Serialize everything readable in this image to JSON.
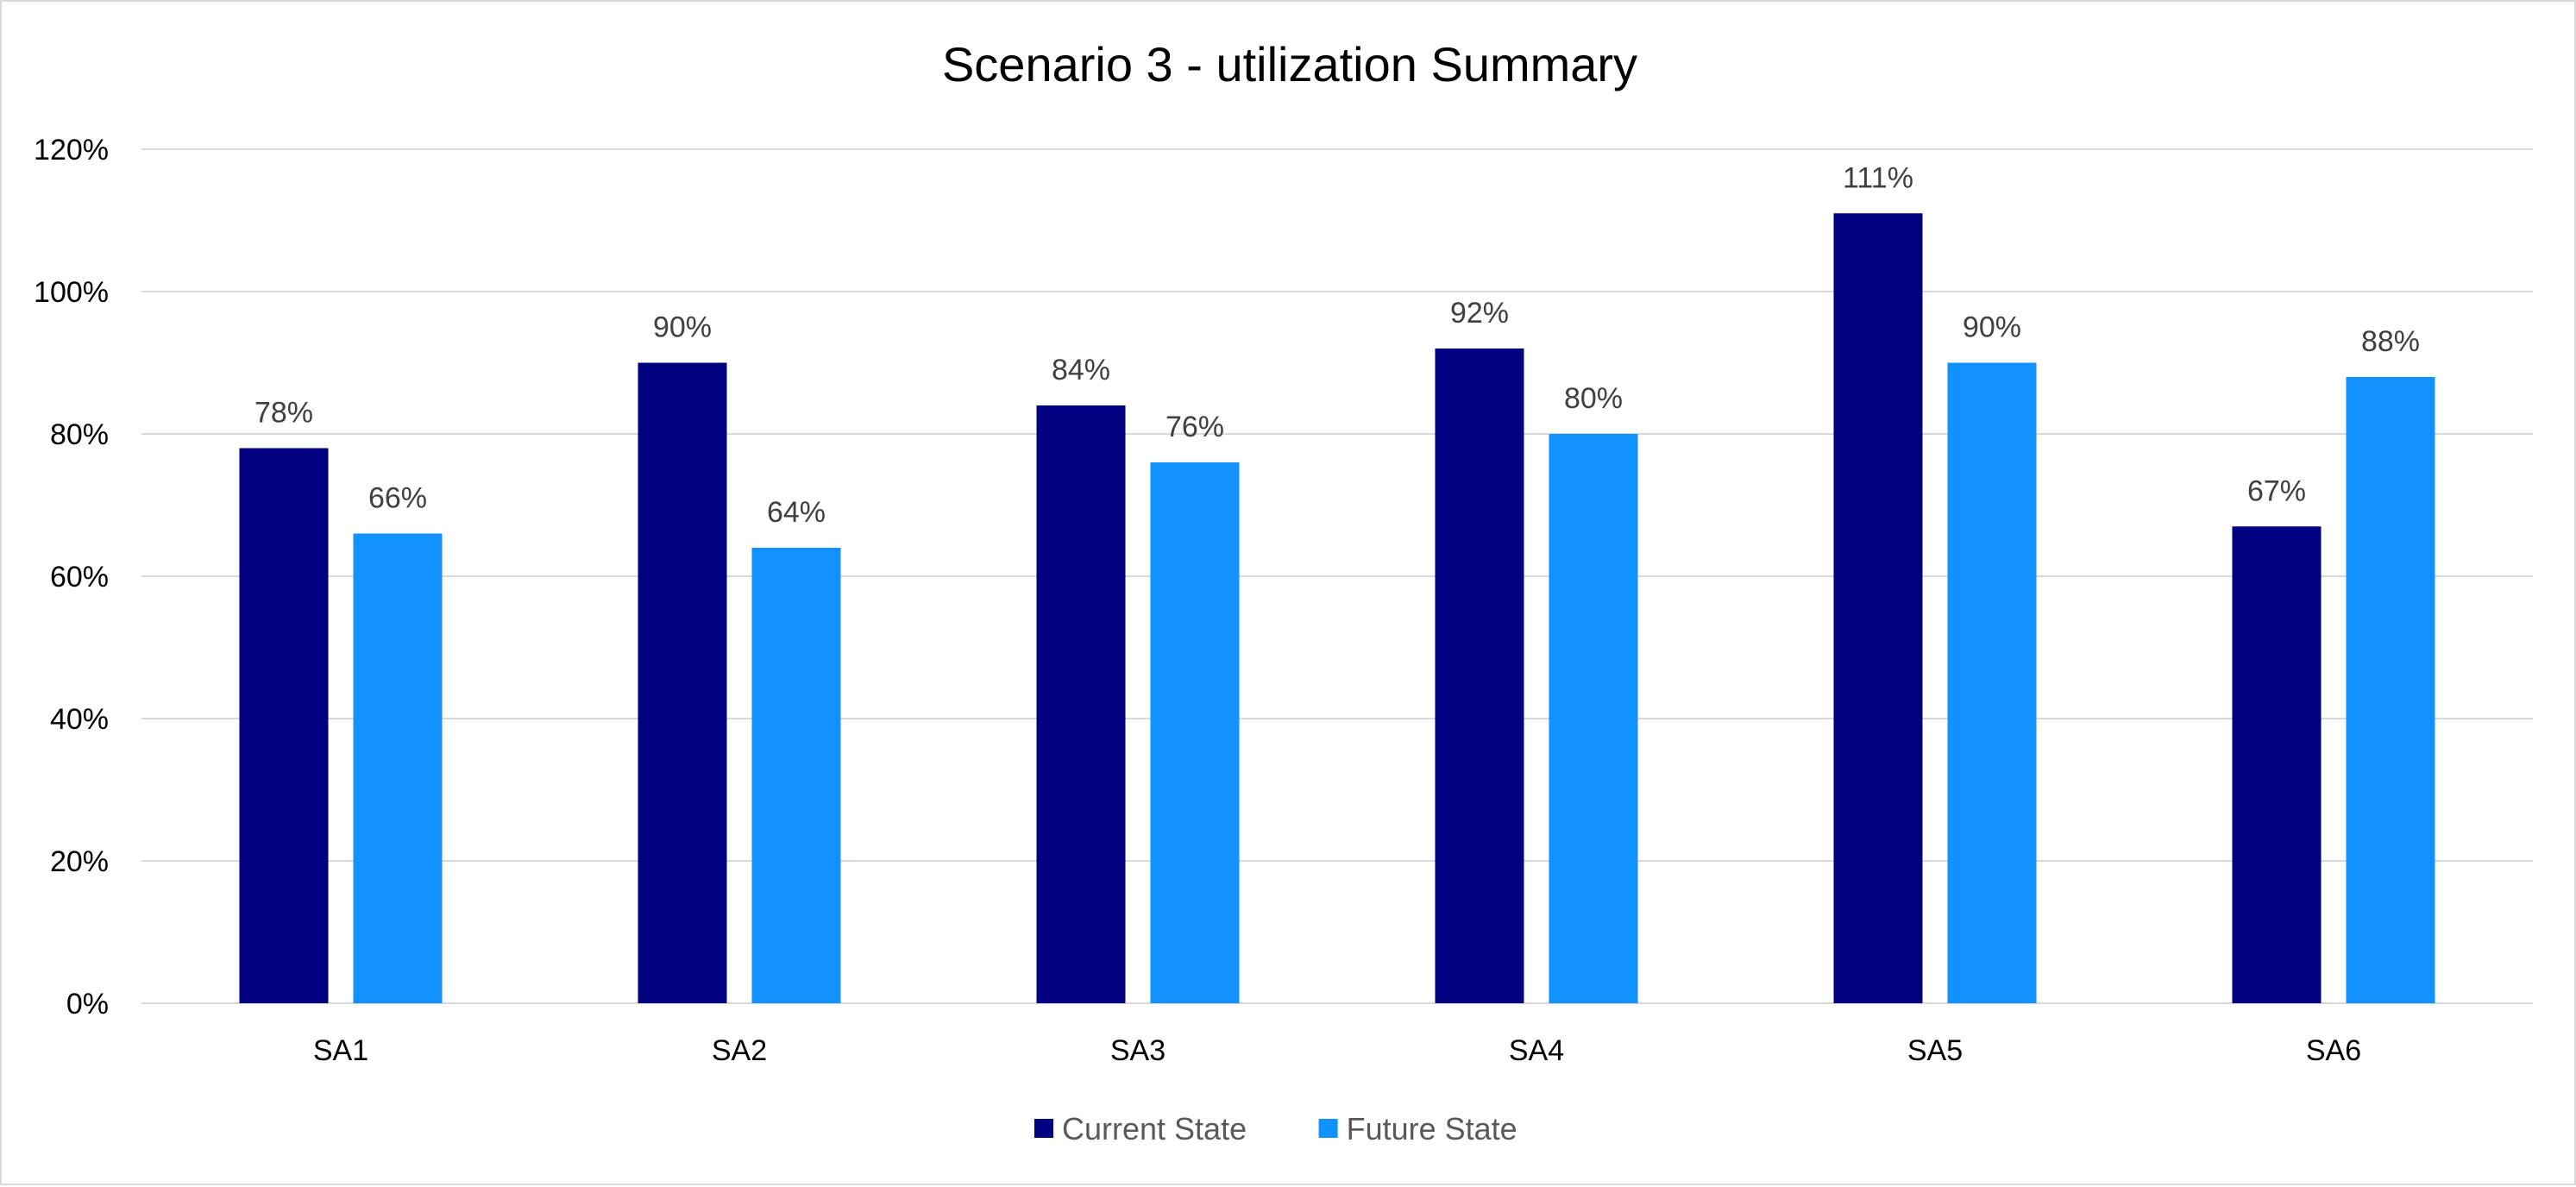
{
  "chart_data": {
    "type": "bar",
    "title": "Scenario 3 - utilization Summary",
    "xlabel": "",
    "ylabel": "",
    "categories": [
      "SA1",
      "SA2",
      "SA3",
      "SA4",
      "SA5",
      "SA6"
    ],
    "series": [
      {
        "name": "Current State",
        "color": "#000080",
        "values": [
          78,
          90,
          84,
          92,
          111,
          67
        ],
        "labels": [
          "78%",
          "90%",
          "84%",
          "92%",
          "111%",
          "67%"
        ]
      },
      {
        "name": "Future State",
        "color": "#1192FF",
        "values": [
          66,
          64,
          76,
          80,
          90,
          88
        ],
        "labels": [
          "66%",
          "64%",
          "76%",
          "80%",
          "90%",
          "88%"
        ]
      }
    ],
    "ylim": [
      0,
      120
    ],
    "yticks": [
      0,
      20,
      40,
      60,
      80,
      100,
      120
    ],
    "ytick_labels": [
      "0%",
      "20%",
      "40%",
      "60%",
      "80%",
      "100%",
      "120%"
    ],
    "grid": true,
    "legend_position": "bottom"
  }
}
